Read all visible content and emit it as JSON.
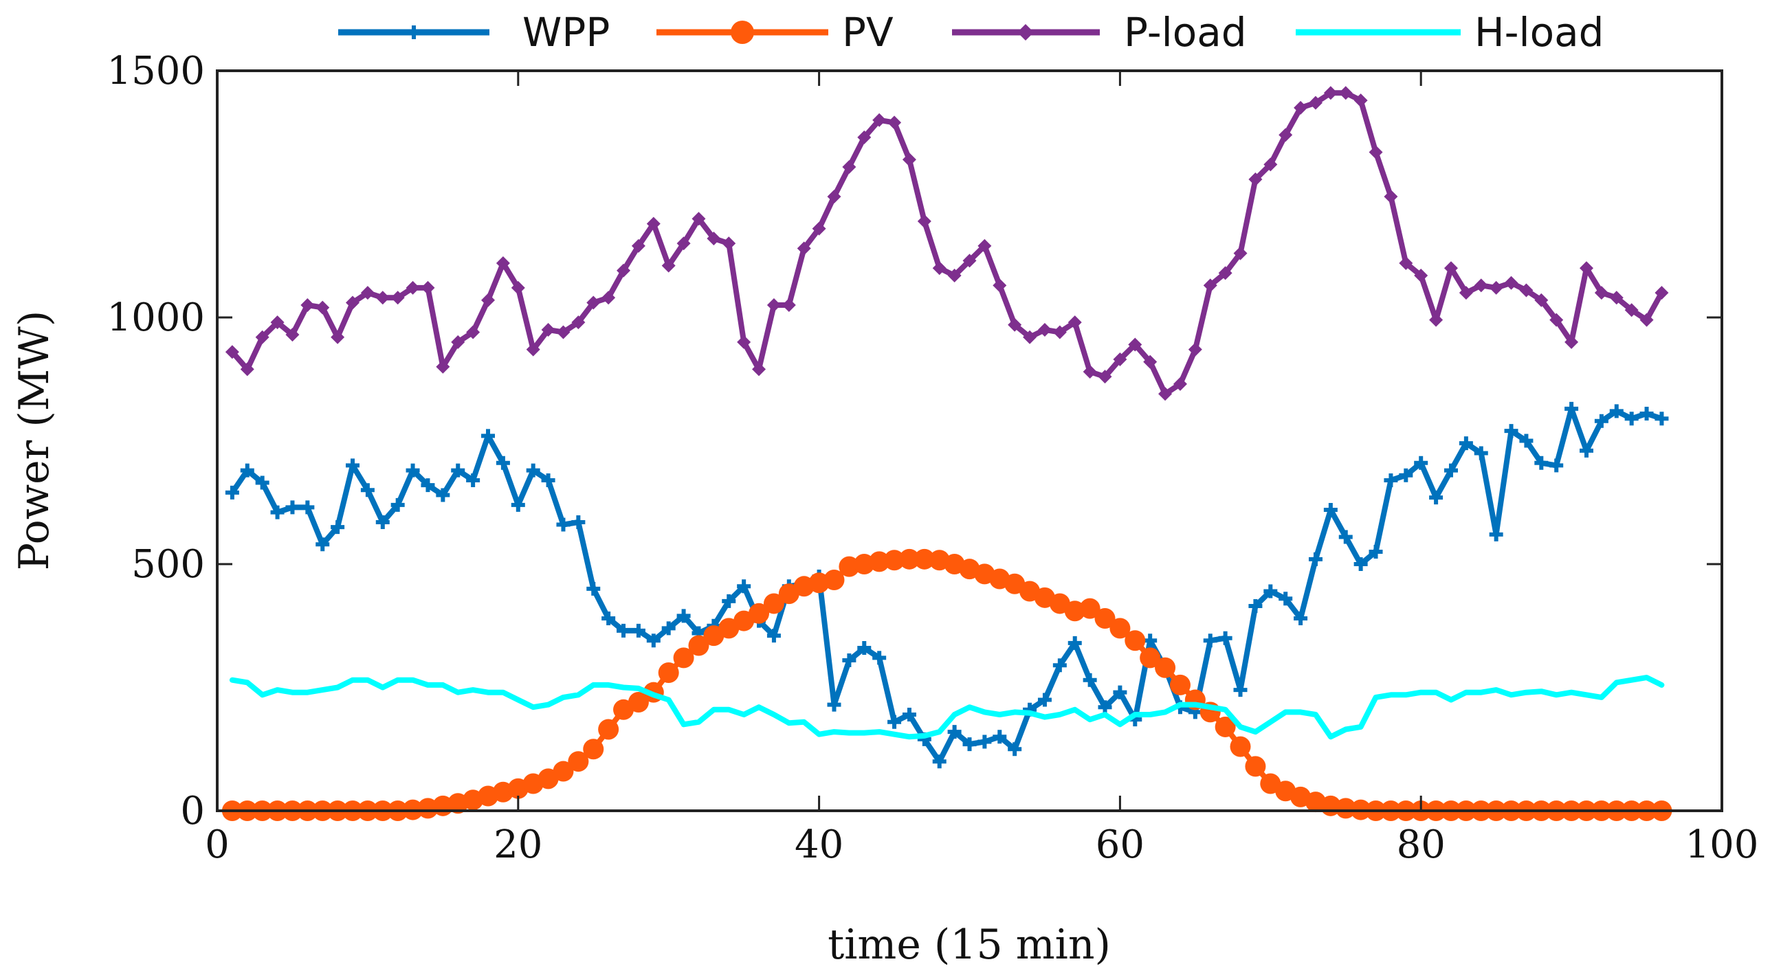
{
  "chart_data": {
    "type": "line",
    "title": "",
    "xlabel": "time (15 min)",
    "ylabel": "Power (MW)",
    "xlim": [
      0,
      100
    ],
    "ylim": [
      0,
      1500
    ],
    "xticks": [
      "0",
      "20",
      "40",
      "60",
      "80",
      "100"
    ],
    "yticks": [
      "0",
      "500",
      "1000",
      "1500"
    ],
    "grid": false,
    "legend_position": "top",
    "x_start": 1,
    "series": [
      {
        "name": "WPP",
        "color": "#0072BD",
        "marker": "plus",
        "values": [
          645,
          690,
          665,
          605,
          615,
          615,
          540,
          575,
          700,
          650,
          585,
          620,
          690,
          660,
          640,
          690,
          670,
          760,
          705,
          620,
          690,
          670,
          580,
          585,
          450,
          390,
          365,
          365,
          345,
          370,
          395,
          360,
          375,
          425,
          455,
          385,
          355,
          455,
          460,
          475,
          215,
          305,
          330,
          310,
          180,
          195,
          145,
          100,
          160,
          135,
          140,
          150,
          125,
          205,
          225,
          295,
          340,
          265,
          210,
          240,
          185,
          345,
          290,
          210,
          200,
          345,
          350,
          245,
          415,
          445,
          430,
          390,
          510,
          610,
          555,
          500,
          525,
          670,
          680,
          705,
          635,
          690,
          745,
          725,
          560,
          770,
          750,
          705,
          700,
          815,
          730,
          790,
          810,
          795,
          805,
          795
        ]
      },
      {
        "name": "PV",
        "color": "#FF5A0A",
        "marker": "circle",
        "values": [
          0,
          0,
          0,
          0,
          0,
          0,
          0,
          0,
          0,
          0,
          0,
          0,
          2,
          5,
          10,
          15,
          22,
          30,
          38,
          45,
          55,
          65,
          80,
          100,
          125,
          165,
          205,
          220,
          240,
          280,
          310,
          335,
          355,
          370,
          385,
          400,
          420,
          440,
          455,
          462,
          468,
          495,
          500,
          505,
          508,
          510,
          510,
          508,
          500,
          490,
          480,
          470,
          460,
          445,
          432,
          420,
          405,
          410,
          390,
          370,
          345,
          310,
          290,
          255,
          225,
          200,
          170,
          130,
          90,
          55,
          40,
          28,
          18,
          10,
          5,
          2,
          0,
          0,
          0,
          0,
          0,
          0,
          0,
          0,
          0,
          0,
          0,
          0,
          0,
          0,
          0,
          0,
          0,
          0,
          0,
          0
        ]
      },
      {
        "name": "P-load",
        "color": "#7E2F8E",
        "marker": "diamond",
        "values": [
          930,
          895,
          960,
          990,
          965,
          1025,
          1020,
          960,
          1030,
          1050,
          1040,
          1040,
          1060,
          1060,
          900,
          950,
          970,
          1035,
          1110,
          1060,
          935,
          975,
          970,
          990,
          1030,
          1040,
          1095,
          1145,
          1190,
          1105,
          1150,
          1200,
          1160,
          1150,
          950,
          895,
          1025,
          1025,
          1140,
          1180,
          1245,
          1305,
          1365,
          1400,
          1395,
          1320,
          1195,
          1100,
          1085,
          1115,
          1145,
          1065,
          985,
          960,
          975,
          970,
          990,
          890,
          880,
          915,
          945,
          910,
          845,
          865,
          935,
          1065,
          1090,
          1130,
          1280,
          1310,
          1370,
          1425,
          1435,
          1455,
          1455,
          1440,
          1335,
          1245,
          1110,
          1085,
          995,
          1100,
          1050,
          1065,
          1060,
          1070,
          1055,
          1035,
          995,
          950,
          1100,
          1050,
          1040,
          1015,
          995,
          1050
        ]
      },
      {
        "name": "H-load",
        "color": "#00FFFF",
        "marker": "none",
        "values": [
          265,
          260,
          235,
          245,
          240,
          240,
          245,
          250,
          265,
          265,
          250,
          265,
          265,
          255,
          255,
          240,
          245,
          240,
          240,
          225,
          210,
          215,
          230,
          235,
          255,
          255,
          250,
          248,
          235,
          225,
          175,
          180,
          205,
          205,
          195,
          210,
          195,
          178,
          180,
          155,
          160,
          158,
          158,
          160,
          155,
          150,
          152,
          160,
          195,
          210,
          200,
          195,
          200,
          198,
          190,
          195,
          205,
          185,
          195,
          175,
          195,
          195,
          200,
          215,
          215,
          210,
          205,
          170,
          160,
          180,
          200,
          200,
          195,
          150,
          165,
          170,
          230,
          235,
          235,
          240,
          240,
          225,
          240,
          240,
          245,
          235,
          240,
          242,
          235,
          240,
          235,
          230,
          260,
          265,
          270,
          255
        ]
      }
    ]
  }
}
